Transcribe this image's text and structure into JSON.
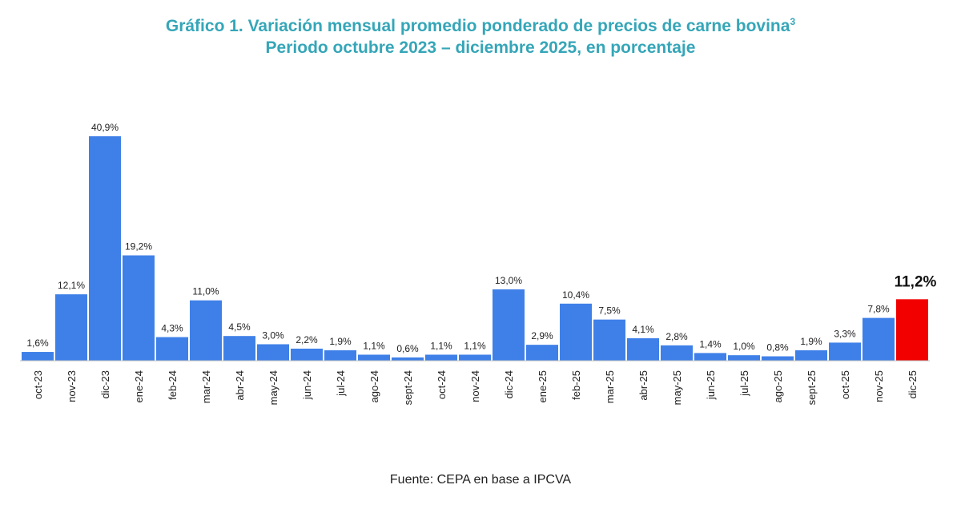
{
  "chart_data": {
    "type": "bar",
    "title": "Gráfico 1. Variación mensual promedio ponderado de precios de carne bovina",
    "title_superscript": "3",
    "subtitle": "Periodo octubre 2023 – diciembre 2025, en porcentaje",
    "xlabel": "",
    "ylabel": "",
    "ylim": [
      0,
      45
    ],
    "grid": false,
    "categories": [
      "oct-23",
      "nov-23",
      "dic-23",
      "ene-24",
      "feb-24",
      "mar-24",
      "abr-24",
      "may-24",
      "jun-24",
      "jul-24",
      "ago-24",
      "sept-24",
      "oct-24",
      "nov-24",
      "dic-24",
      "ene-25",
      "feb-25",
      "mar-25",
      "abr-25",
      "may-25",
      "jun-25",
      "jul-25",
      "ago-25",
      "sept-25",
      "oct-25",
      "nov-25",
      "dic-25"
    ],
    "values": [
      1.6,
      12.1,
      40.9,
      19.2,
      4.3,
      11.0,
      4.5,
      3.0,
      2.2,
      1.9,
      1.1,
      0.6,
      1.1,
      1.1,
      13.0,
      2.9,
      10.4,
      7.5,
      4.1,
      2.8,
      1.4,
      1.0,
      0.8,
      1.9,
      3.3,
      7.8,
      11.2
    ],
    "labels": [
      "1,6%",
      "12,1%",
      "40,9%",
      "19,2%",
      "4,3%",
      "11,0%",
      "4,5%",
      "3,0%",
      "2,2%",
      "1,9%",
      "1,1%",
      "0,6%",
      "1,1%",
      "1,1%",
      "13,0%",
      "2,9%",
      "10,4%",
      "7,5%",
      "4,1%",
      "2,8%",
      "1,4%",
      "1,0%",
      "0,8%",
      "1,9%",
      "3,3%",
      "7,8%",
      "11,2%"
    ],
    "highlight_index": 26,
    "colors": {
      "bar": "#3f80e8",
      "highlight": "#f20000",
      "title": "#35a6b8"
    }
  },
  "footer": {
    "source": "Fuente: CEPA en base a IPCVA"
  }
}
